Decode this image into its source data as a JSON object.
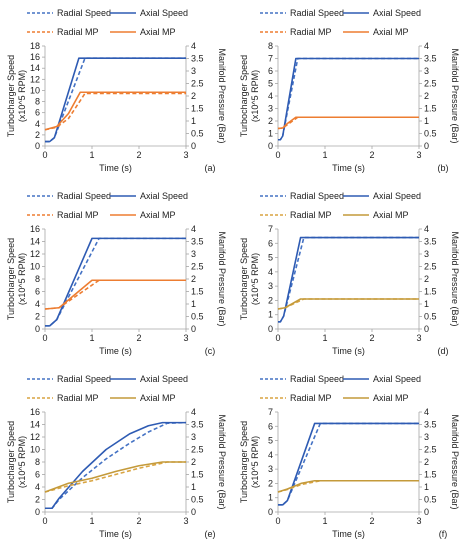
{
  "colors": {
    "radial_speed": "#4472C4",
    "axial_speed": "#2E5BB3",
    "radial_mp": "#ED7D31",
    "axial_mp": "#ED7D31",
    "radial_mp_gold": "#D9A441",
    "axial_mp_gold": "#C49A3A",
    "axis": "#A6A6A6",
    "text": "#222222"
  },
  "chart_data": [
    {
      "panel": "(a)",
      "type": "line",
      "legend": [
        "Radial Speed",
        "Axial Speed",
        "Radial MP",
        "Axial MP"
      ],
      "xlabel": "Time (s)",
      "ylabel_left": [
        "Turbocharger Speed",
        "(x10^5 RPM)"
      ],
      "ylabel_right": "Manifold Pressure (Bar)",
      "xlim": [
        0,
        3
      ],
      "xticks": [
        0,
        1,
        2,
        3
      ],
      "ylim_left": [
        0,
        18
      ],
      "yticks_left": [
        0,
        2,
        4,
        6,
        8,
        10,
        12,
        14,
        16,
        18
      ],
      "ylim_right": [
        0,
        4
      ],
      "yticks_right": [
        0,
        0.5,
        1,
        1.5,
        2,
        2.5,
        3,
        3.5,
        4
      ],
      "series": [
        {
          "name": "Radial Speed",
          "axis": "left",
          "style": "dashed",
          "color": "#4472C4",
          "x": [
            0,
            0.1,
            0.2,
            0.85,
            3
          ],
          "y": [
            0.8,
            0.8,
            1.5,
            15.8,
            15.8
          ]
        },
        {
          "name": "Axial Speed",
          "axis": "left",
          "style": "solid",
          "color": "#2E5BB3",
          "x": [
            0,
            0.1,
            0.2,
            0.72,
            3
          ],
          "y": [
            0.8,
            0.8,
            1.5,
            15.8,
            15.8
          ]
        },
        {
          "name": "Radial MP",
          "axis": "right",
          "style": "dashed",
          "color": "#ED7D31",
          "x": [
            0,
            0.25,
            0.5,
            0.85,
            3
          ],
          "y": [
            0.65,
            0.75,
            1.1,
            2.1,
            2.1
          ]
        },
        {
          "name": "Axial MP",
          "axis": "right",
          "style": "solid",
          "color": "#ED7D31",
          "x": [
            0,
            0.25,
            0.5,
            0.75,
            3
          ],
          "y": [
            0.65,
            0.78,
            1.3,
            2.15,
            2.15
          ]
        }
      ]
    },
    {
      "panel": "(b)",
      "type": "line",
      "legend": [
        "Radial Speed",
        "Axial Speed",
        "Radial MP",
        "Axial MP"
      ],
      "xlabel": "Time (s)",
      "ylabel_left": [
        "Turbocharger Speed",
        "(x10^5 RPM)"
      ],
      "ylabel_right": "Manifold Pressure (Bar)",
      "xlim": [
        0,
        3
      ],
      "xticks": [
        0,
        1,
        2,
        3
      ],
      "ylim_left": [
        0,
        8
      ],
      "yticks_left": [
        0,
        1,
        2,
        3,
        4,
        5,
        6,
        7,
        8
      ],
      "ylim_right": [
        0,
        4
      ],
      "yticks_right": [
        0,
        0.5,
        1,
        1.5,
        2,
        2.5,
        3,
        3.5,
        4
      ],
      "series": [
        {
          "name": "Radial Speed",
          "axis": "left",
          "style": "dashed",
          "color": "#4472C4",
          "x": [
            0,
            0.05,
            0.1,
            0.42,
            3
          ],
          "y": [
            0.5,
            0.5,
            0.8,
            7.0,
            7.0
          ]
        },
        {
          "name": "Axial Speed",
          "axis": "left",
          "style": "solid",
          "color": "#2E5BB3",
          "x": [
            0,
            0.05,
            0.1,
            0.38,
            3
          ],
          "y": [
            0.5,
            0.5,
            0.8,
            7.0,
            7.0
          ]
        },
        {
          "name": "Radial MP",
          "axis": "right",
          "style": "dashed",
          "color": "#ED7D31",
          "x": [
            0,
            0.1,
            0.2,
            0.42,
            3
          ],
          "y": [
            0.7,
            0.72,
            0.85,
            1.15,
            1.15
          ]
        },
        {
          "name": "Axial MP",
          "axis": "right",
          "style": "solid",
          "color": "#ED7D31",
          "x": [
            0,
            0.1,
            0.2,
            0.38,
            3
          ],
          "y": [
            0.7,
            0.72,
            0.9,
            1.15,
            1.15
          ]
        }
      ]
    },
    {
      "panel": "(c)",
      "type": "line",
      "legend": [
        "Radial Speed",
        "Axial Speed",
        "Radial MP",
        "Axial MP"
      ],
      "xlabel": "Time (s)",
      "ylabel_left": [
        "Turbocharger Speed",
        "(x10^5 RPM)"
      ],
      "ylabel_right": "Manifold Pressure (Bar)",
      "xlim": [
        0,
        3
      ],
      "xticks": [
        0,
        1,
        2,
        3
      ],
      "ylim_left": [
        0,
        16
      ],
      "yticks_left": [
        0,
        2,
        4,
        6,
        8,
        10,
        12,
        14,
        16
      ],
      "ylim_right": [
        0,
        4
      ],
      "yticks_right": [
        0,
        0.5,
        1,
        1.5,
        2,
        2.5,
        3,
        3.5,
        4
      ],
      "series": [
        {
          "name": "Radial Speed",
          "axis": "left",
          "style": "dashed",
          "color": "#4472C4",
          "x": [
            0,
            0.1,
            0.25,
            1.15,
            3
          ],
          "y": [
            0.5,
            0.5,
            1.5,
            14.5,
            14.5
          ]
        },
        {
          "name": "Axial Speed",
          "axis": "left",
          "style": "solid",
          "color": "#2E5BB3",
          "x": [
            0,
            0.1,
            0.25,
            1.0,
            3
          ],
          "y": [
            0.5,
            0.5,
            1.5,
            14.5,
            14.5
          ]
        },
        {
          "name": "Radial MP",
          "axis": "right",
          "style": "dashed",
          "color": "#ED7D31",
          "x": [
            0,
            0.3,
            1.15,
            3
          ],
          "y": [
            0.8,
            0.85,
            1.95,
            1.95
          ]
        },
        {
          "name": "Axial MP",
          "axis": "right",
          "style": "solid",
          "color": "#ED7D31",
          "x": [
            0,
            0.3,
            1.0,
            3
          ],
          "y": [
            0.8,
            0.85,
            1.95,
            1.95
          ]
        }
      ]
    },
    {
      "panel": "(d)",
      "type": "line",
      "legend": [
        "Radial Speed",
        "Axial Speed",
        "Radial MP",
        "Axial MP"
      ],
      "xlabel": "Time (s)",
      "ylabel_left": [
        "Turbocharger Speed",
        "(x10^5 RPM)"
      ],
      "ylabel_right": "Manifold Pressure (Bar)",
      "xlim": [
        0,
        3
      ],
      "xticks": [
        0,
        1,
        2,
        3
      ],
      "ylim_left": [
        0,
        7
      ],
      "yticks_left": [
        0,
        1,
        2,
        3,
        4,
        5,
        6,
        7
      ],
      "ylim_right": [
        0,
        4
      ],
      "yticks_right": [
        0,
        0.5,
        1,
        1.5,
        2,
        2.5,
        3,
        3.5,
        4
      ],
      "series": [
        {
          "name": "Radial Speed",
          "axis": "left",
          "style": "dashed",
          "color": "#4472C4",
          "x": [
            0,
            0.05,
            0.12,
            0.55,
            3
          ],
          "y": [
            0.5,
            0.5,
            0.9,
            6.4,
            6.4
          ]
        },
        {
          "name": "Axial Speed",
          "axis": "left",
          "style": "solid",
          "color": "#2E5BB3",
          "x": [
            0,
            0.05,
            0.12,
            0.48,
            3
          ],
          "y": [
            0.5,
            0.5,
            0.9,
            6.4,
            6.4
          ]
        },
        {
          "name": "Radial MP",
          "axis": "right",
          "style": "dashed",
          "color": "#D9A441",
          "x": [
            0,
            0.15,
            0.55,
            3
          ],
          "y": [
            0.8,
            0.85,
            1.2,
            1.2
          ]
        },
        {
          "name": "Axial MP",
          "axis": "right",
          "style": "solid",
          "color": "#C49A3A",
          "x": [
            0,
            0.15,
            0.48,
            3
          ],
          "y": [
            0.8,
            0.85,
            1.2,
            1.2
          ]
        }
      ]
    },
    {
      "panel": "(e)",
      "type": "line",
      "legend": [
        "Radial Speed",
        "Axial Speed",
        "Radial MP",
        "Axial MP"
      ],
      "xlabel": "Time (s)",
      "ylabel_left": [
        "Turbocharger Speed",
        "(x10^5 RPM)"
      ],
      "ylabel_right": "Manifold Pressure (Bar)",
      "xlim": [
        0,
        3
      ],
      "xticks": [
        0,
        1,
        2,
        3
      ],
      "ylim_left": [
        0,
        16
      ],
      "yticks_left": [
        0,
        2,
        4,
        6,
        8,
        10,
        12,
        14,
        16
      ],
      "ylim_right": [
        0,
        4
      ],
      "yticks_right": [
        0,
        0.5,
        1,
        1.5,
        2,
        2.5,
        3,
        3.5,
        4
      ],
      "series": [
        {
          "name": "Radial Speed",
          "axis": "left",
          "style": "dashed",
          "color": "#4472C4",
          "x": [
            0,
            0.15,
            0.3,
            0.8,
            1.3,
            1.8,
            2.2,
            2.6,
            3
          ],
          "y": [
            0.6,
            0.6,
            2.0,
            5.5,
            8.5,
            11.0,
            12.8,
            14.2,
            14.3
          ]
        },
        {
          "name": "Axial Speed",
          "axis": "left",
          "style": "solid",
          "color": "#2E5BB3",
          "x": [
            0,
            0.15,
            0.3,
            0.8,
            1.3,
            1.8,
            2.2,
            2.5,
            3
          ],
          "y": [
            0.6,
            0.6,
            2.2,
            6.5,
            10.0,
            12.5,
            13.8,
            14.3,
            14.3
          ]
        },
        {
          "name": "Radial MP",
          "axis": "right",
          "style": "dashed",
          "color": "#D9A441",
          "x": [
            0,
            0.5,
            1.0,
            1.5,
            2.0,
            2.6,
            3
          ],
          "y": [
            0.8,
            1.05,
            1.25,
            1.5,
            1.75,
            2.0,
            2.0
          ]
        },
        {
          "name": "Axial MP",
          "axis": "right",
          "style": "solid",
          "color": "#C49A3A",
          "x": [
            0,
            0.5,
            1.0,
            1.5,
            2.0,
            2.5,
            3
          ],
          "y": [
            0.8,
            1.15,
            1.35,
            1.62,
            1.85,
            2.0,
            2.0
          ]
        }
      ]
    },
    {
      "panel": "(f)",
      "type": "line",
      "legend": [
        "Radial Speed",
        "Axial Speed",
        "Radial MP",
        "Axial MP"
      ],
      "xlabel": "Time (s)",
      "ylabel_left": [
        "Turbocharger Speed",
        "(x10^5 RPM)"
      ],
      "ylabel_right": "Manifold Pressure (Bar)",
      "xlim": [
        0,
        3
      ],
      "xticks": [
        0,
        1,
        2,
        3
      ],
      "ylim_left": [
        0,
        7
      ],
      "yticks_left": [
        0,
        1,
        2,
        3,
        4,
        5,
        6,
        7
      ],
      "ylim_right": [
        0,
        4
      ],
      "yticks_right": [
        0,
        0.5,
        1,
        1.5,
        2,
        2.5,
        3,
        3.5,
        4
      ],
      "series": [
        {
          "name": "Radial Speed",
          "axis": "left",
          "style": "dashed",
          "color": "#4472C4",
          "x": [
            0,
            0.1,
            0.2,
            0.9,
            3
          ],
          "y": [
            0.5,
            0.5,
            0.8,
            6.2,
            6.2
          ]
        },
        {
          "name": "Axial Speed",
          "axis": "left",
          "style": "solid",
          "color": "#2E5BB3",
          "x": [
            0,
            0.1,
            0.2,
            0.78,
            3
          ],
          "y": [
            0.5,
            0.5,
            0.8,
            6.2,
            6.2
          ]
        },
        {
          "name": "Radial MP",
          "axis": "right",
          "style": "dashed",
          "color": "#D9A441",
          "x": [
            0,
            0.2,
            0.5,
            0.9,
            3
          ],
          "y": [
            0.8,
            0.9,
            1.1,
            1.25,
            1.25
          ]
        },
        {
          "name": "Axial MP",
          "axis": "right",
          "style": "solid",
          "color": "#C49A3A",
          "x": [
            0,
            0.2,
            0.5,
            0.78,
            3
          ],
          "y": [
            0.8,
            0.92,
            1.15,
            1.25,
            1.25
          ]
        }
      ]
    }
  ]
}
